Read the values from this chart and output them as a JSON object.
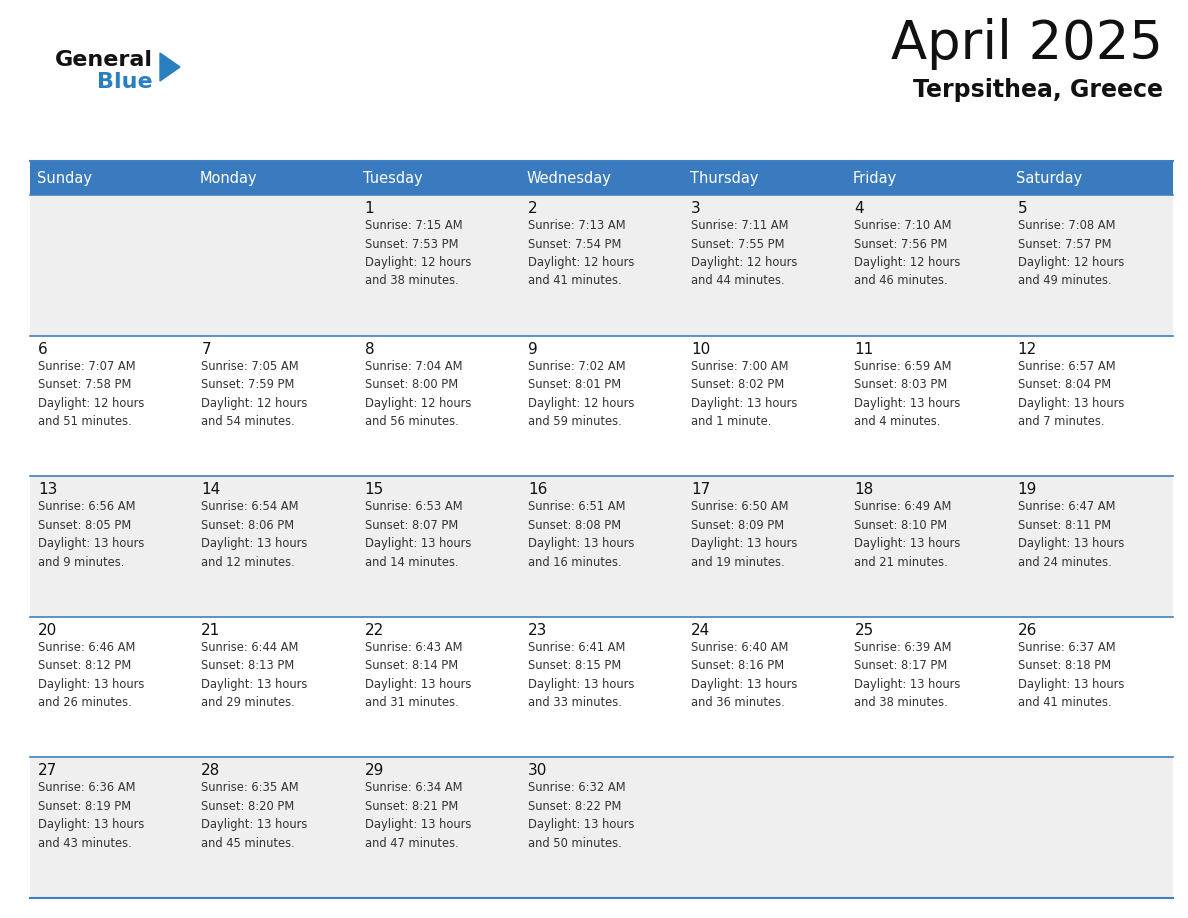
{
  "title": "April 2025",
  "subtitle": "Terpsithea, Greece",
  "days_of_week": [
    "Sunday",
    "Monday",
    "Tuesday",
    "Wednesday",
    "Thursday",
    "Friday",
    "Saturday"
  ],
  "header_bg": "#3a7bbf",
  "header_text": "#ffffff",
  "row_bg_light": "#efefef",
  "row_bg_white": "#ffffff",
  "cell_border_color": "#4080c0",
  "day_number_color": "#111111",
  "text_color": "#333333",
  "title_color": "#111111",
  "subtitle_color": "#111111",
  "logo_black": "#111111",
  "logo_blue": "#2a7fc0",
  "calendar_data": [
    [
      {
        "day": null,
        "info": null
      },
      {
        "day": null,
        "info": null
      },
      {
        "day": 1,
        "info": "Sunrise: 7:15 AM\nSunset: 7:53 PM\nDaylight: 12 hours\nand 38 minutes."
      },
      {
        "day": 2,
        "info": "Sunrise: 7:13 AM\nSunset: 7:54 PM\nDaylight: 12 hours\nand 41 minutes."
      },
      {
        "day": 3,
        "info": "Sunrise: 7:11 AM\nSunset: 7:55 PM\nDaylight: 12 hours\nand 44 minutes."
      },
      {
        "day": 4,
        "info": "Sunrise: 7:10 AM\nSunset: 7:56 PM\nDaylight: 12 hours\nand 46 minutes."
      },
      {
        "day": 5,
        "info": "Sunrise: 7:08 AM\nSunset: 7:57 PM\nDaylight: 12 hours\nand 49 minutes."
      }
    ],
    [
      {
        "day": 6,
        "info": "Sunrise: 7:07 AM\nSunset: 7:58 PM\nDaylight: 12 hours\nand 51 minutes."
      },
      {
        "day": 7,
        "info": "Sunrise: 7:05 AM\nSunset: 7:59 PM\nDaylight: 12 hours\nand 54 minutes."
      },
      {
        "day": 8,
        "info": "Sunrise: 7:04 AM\nSunset: 8:00 PM\nDaylight: 12 hours\nand 56 minutes."
      },
      {
        "day": 9,
        "info": "Sunrise: 7:02 AM\nSunset: 8:01 PM\nDaylight: 12 hours\nand 59 minutes."
      },
      {
        "day": 10,
        "info": "Sunrise: 7:00 AM\nSunset: 8:02 PM\nDaylight: 13 hours\nand 1 minute."
      },
      {
        "day": 11,
        "info": "Sunrise: 6:59 AM\nSunset: 8:03 PM\nDaylight: 13 hours\nand 4 minutes."
      },
      {
        "day": 12,
        "info": "Sunrise: 6:57 AM\nSunset: 8:04 PM\nDaylight: 13 hours\nand 7 minutes."
      }
    ],
    [
      {
        "day": 13,
        "info": "Sunrise: 6:56 AM\nSunset: 8:05 PM\nDaylight: 13 hours\nand 9 minutes."
      },
      {
        "day": 14,
        "info": "Sunrise: 6:54 AM\nSunset: 8:06 PM\nDaylight: 13 hours\nand 12 minutes."
      },
      {
        "day": 15,
        "info": "Sunrise: 6:53 AM\nSunset: 8:07 PM\nDaylight: 13 hours\nand 14 minutes."
      },
      {
        "day": 16,
        "info": "Sunrise: 6:51 AM\nSunset: 8:08 PM\nDaylight: 13 hours\nand 16 minutes."
      },
      {
        "day": 17,
        "info": "Sunrise: 6:50 AM\nSunset: 8:09 PM\nDaylight: 13 hours\nand 19 minutes."
      },
      {
        "day": 18,
        "info": "Sunrise: 6:49 AM\nSunset: 8:10 PM\nDaylight: 13 hours\nand 21 minutes."
      },
      {
        "day": 19,
        "info": "Sunrise: 6:47 AM\nSunset: 8:11 PM\nDaylight: 13 hours\nand 24 minutes."
      }
    ],
    [
      {
        "day": 20,
        "info": "Sunrise: 6:46 AM\nSunset: 8:12 PM\nDaylight: 13 hours\nand 26 minutes."
      },
      {
        "day": 21,
        "info": "Sunrise: 6:44 AM\nSunset: 8:13 PM\nDaylight: 13 hours\nand 29 minutes."
      },
      {
        "day": 22,
        "info": "Sunrise: 6:43 AM\nSunset: 8:14 PM\nDaylight: 13 hours\nand 31 minutes."
      },
      {
        "day": 23,
        "info": "Sunrise: 6:41 AM\nSunset: 8:15 PM\nDaylight: 13 hours\nand 33 minutes."
      },
      {
        "day": 24,
        "info": "Sunrise: 6:40 AM\nSunset: 8:16 PM\nDaylight: 13 hours\nand 36 minutes."
      },
      {
        "day": 25,
        "info": "Sunrise: 6:39 AM\nSunset: 8:17 PM\nDaylight: 13 hours\nand 38 minutes."
      },
      {
        "day": 26,
        "info": "Sunrise: 6:37 AM\nSunset: 8:18 PM\nDaylight: 13 hours\nand 41 minutes."
      }
    ],
    [
      {
        "day": 27,
        "info": "Sunrise: 6:36 AM\nSunset: 8:19 PM\nDaylight: 13 hours\nand 43 minutes."
      },
      {
        "day": 28,
        "info": "Sunrise: 6:35 AM\nSunset: 8:20 PM\nDaylight: 13 hours\nand 45 minutes."
      },
      {
        "day": 29,
        "info": "Sunrise: 6:34 AM\nSunset: 8:21 PM\nDaylight: 13 hours\nand 47 minutes."
      },
      {
        "day": 30,
        "info": "Sunrise: 6:32 AM\nSunset: 8:22 PM\nDaylight: 13 hours\nand 50 minutes."
      },
      {
        "day": null,
        "info": null
      },
      {
        "day": null,
        "info": null
      },
      {
        "day": null,
        "info": null
      }
    ]
  ]
}
